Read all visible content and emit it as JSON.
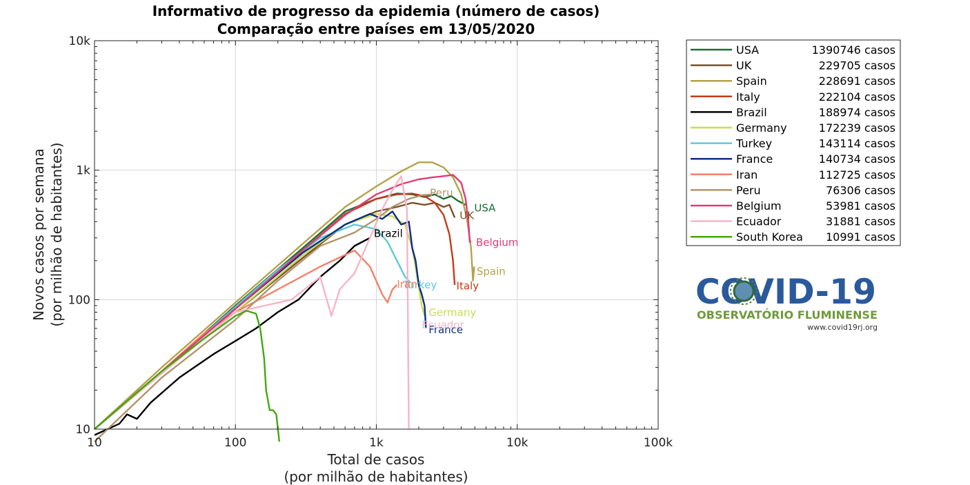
{
  "chart_data": {
    "type": "line",
    "title": "Informativo de progresso da epidemia (número de casos)",
    "subtitle": "Comparação entre países em 13/05/2020",
    "xlabel": "Total de casos",
    "xlabel2": "(por milhão de habitantes)",
    "ylabel": "Novos casos por semana",
    "ylabel2": "(por milhão de habitantes)",
    "x_scale": "log",
    "y_scale": "log",
    "xlim": [
      10,
      100000
    ],
    "ylim": [
      10,
      10000
    ],
    "x_ticks": [
      {
        "value": 10,
        "label": "10"
      },
      {
        "value": 100,
        "label": "100"
      },
      {
        "value": 1000,
        "label": "1k"
      },
      {
        "value": 10000,
        "label": "10k"
      },
      {
        "value": 100000,
        "label": "100k"
      }
    ],
    "y_ticks": [
      {
        "value": 10,
        "label": "10"
      },
      {
        "value": 100,
        "label": "100"
      },
      {
        "value": 1000,
        "label": "1k"
      },
      {
        "value": 10000,
        "label": "10k"
      }
    ],
    "grid": true,
    "legend_position": "outside-right",
    "series": [
      {
        "name": "USA",
        "total": "1390746 casos",
        "color": "#1a6e35",
        "label": "USA",
        "label_at": [
          4950,
          480
        ],
        "points": [
          [
            10,
            10
          ],
          [
            30,
            28
          ],
          [
            100,
            90
          ],
          [
            300,
            250
          ],
          [
            600,
            480
          ],
          [
            1000,
            600
          ],
          [
            1400,
            660
          ],
          [
            1800,
            650
          ],
          [
            2200,
            620
          ],
          [
            2600,
            650
          ],
          [
            3000,
            600
          ],
          [
            3400,
            630
          ],
          [
            3800,
            580
          ],
          [
            4300,
            540
          ]
        ]
      },
      {
        "name": "UK",
        "total": "229705 casos",
        "color": "#7b5026",
        "label": "UK",
        "label_at": [
          3900,
          420
        ],
        "points": [
          [
            10,
            10
          ],
          [
            30,
            27
          ],
          [
            100,
            80
          ],
          [
            300,
            210
          ],
          [
            600,
            380
          ],
          [
            1000,
            480
          ],
          [
            1400,
            520
          ],
          [
            1800,
            560
          ],
          [
            2200,
            540
          ],
          [
            2600,
            560
          ],
          [
            3000,
            520
          ],
          [
            3300,
            540
          ],
          [
            3600,
            430
          ]
        ]
      },
      {
        "name": "Spain",
        "total": "228691 casos",
        "color": "#b5a147",
        "label": "Spain",
        "label_at": [
          5150,
          155
        ],
        "points": [
          [
            10,
            10
          ],
          [
            30,
            30
          ],
          [
            100,
            95
          ],
          [
            300,
            270
          ],
          [
            600,
            520
          ],
          [
            1000,
            750
          ],
          [
            1500,
            980
          ],
          [
            2000,
            1150
          ],
          [
            2500,
            1150
          ],
          [
            3000,
            1050
          ],
          [
            3500,
            880
          ],
          [
            4000,
            650
          ],
          [
            4400,
            420
          ],
          [
            4700,
            250
          ],
          [
            4850,
            140
          ],
          [
            4950,
            180
          ]
        ]
      },
      {
        "name": "Italy",
        "total": "222104 casos",
        "color": "#c43b1b",
        "label": "Italy",
        "label_at": [
          3700,
          120
        ],
        "points": [
          [
            10,
            10
          ],
          [
            30,
            28
          ],
          [
            100,
            85
          ],
          [
            300,
            240
          ],
          [
            600,
            460
          ],
          [
            1000,
            600
          ],
          [
            1400,
            650
          ],
          [
            1800,
            660
          ],
          [
            2200,
            630
          ],
          [
            2600,
            560
          ],
          [
            3000,
            450
          ],
          [
            3300,
            320
          ],
          [
            3500,
            200
          ],
          [
            3600,
            130
          ]
        ]
      },
      {
        "name": "Brazil",
        "total": "188974 casos",
        "color": "#000000",
        "label": "Brazil",
        "label_at": [
          960,
          305
        ],
        "points": [
          [
            10,
            9
          ],
          [
            15,
            11
          ],
          [
            17,
            13
          ],
          [
            20,
            12
          ],
          [
            25,
            16
          ],
          [
            40,
            25
          ],
          [
            70,
            38
          ],
          [
            100,
            48
          ],
          [
            140,
            60
          ],
          [
            200,
            80
          ],
          [
            280,
            100
          ],
          [
            400,
            150
          ],
          [
            550,
            200
          ],
          [
            700,
            260
          ],
          [
            900,
            300
          ]
        ]
      },
      {
        "name": "Germany",
        "total": "172239 casos",
        "color": "#c8dc54",
        "label": "Germany",
        "label_at": [
          2350,
          75
        ],
        "points": [
          [
            10,
            10
          ],
          [
            30,
            27
          ],
          [
            100,
            80
          ],
          [
            300,
            220
          ],
          [
            600,
            380
          ],
          [
            1000,
            460
          ],
          [
            1300,
            440
          ],
          [
            1600,
            380
          ],
          [
            1800,
            250
          ],
          [
            1950,
            150
          ],
          [
            2100,
            90
          ],
          [
            2200,
            75
          ]
        ]
      },
      {
        "name": "Turkey",
        "total": "143114 casos",
        "color": "#5ec8d9",
        "label": "Turkey",
        "label_at": [
          1550,
          122
        ],
        "points": [
          [
            10,
            10
          ],
          [
            30,
            28
          ],
          [
            100,
            88
          ],
          [
            200,
            170
          ],
          [
            400,
            300
          ],
          [
            700,
            380
          ],
          [
            1000,
            350
          ],
          [
            1200,
            280
          ],
          [
            1400,
            200
          ],
          [
            1600,
            150
          ],
          [
            1750,
            135
          ]
        ]
      },
      {
        "name": "France",
        "total": "140734 casos",
        "color": "#0b2d84",
        "label": "France",
        "label_at": [
          2350,
          55
        ],
        "points": [
          [
            10,
            10
          ],
          [
            30,
            28
          ],
          [
            100,
            85
          ],
          [
            300,
            230
          ],
          [
            600,
            380
          ],
          [
            900,
            460
          ],
          [
            1100,
            420
          ],
          [
            1300,
            480
          ],
          [
            1500,
            380
          ],
          [
            1700,
            400
          ],
          [
            1800,
            250
          ],
          [
            1900,
            200
          ],
          [
            2000,
            130
          ],
          [
            2100,
            110
          ],
          [
            2200,
            90
          ],
          [
            2250,
            60
          ]
        ]
      },
      {
        "name": "Iran",
        "total": "112725 casos",
        "color": "#f2806a",
        "label": "Iran",
        "label_at": [
          1400,
          124
        ],
        "points": [
          [
            10,
            10
          ],
          [
            30,
            28
          ],
          [
            60,
            55
          ],
          [
            100,
            80
          ],
          [
            200,
            120
          ],
          [
            400,
            180
          ],
          [
            700,
            240
          ],
          [
            900,
            180
          ],
          [
            1100,
            110
          ],
          [
            1200,
            95
          ],
          [
            1300,
            120
          ],
          [
            1400,
            130
          ]
        ]
      },
      {
        "name": "Peru",
        "total": "76306 casos",
        "color": "#b0946a",
        "label": "Peru",
        "label_at": [
          2400,
          630
        ],
        "points": [
          [
            10,
            8
          ],
          [
            30,
            25
          ],
          [
            100,
            70
          ],
          [
            200,
            140
          ],
          [
            400,
            260
          ],
          [
            700,
            330
          ],
          [
            1000,
            420
          ],
          [
            1300,
            520
          ],
          [
            1700,
            600
          ],
          [
            2100,
            640
          ],
          [
            2500,
            650
          ]
        ]
      },
      {
        "name": "Belgium",
        "total": "53981 casos",
        "color": "#e23a73",
        "label": "Belgium",
        "label_at": [
          5100,
          260
        ],
        "points": [
          [
            10,
            10
          ],
          [
            30,
            28
          ],
          [
            100,
            85
          ],
          [
            300,
            240
          ],
          [
            600,
            450
          ],
          [
            1000,
            650
          ],
          [
            1500,
            780
          ],
          [
            2000,
            850
          ],
          [
            2500,
            880
          ],
          [
            3000,
            900
          ],
          [
            3500,
            920
          ],
          [
            4000,
            800
          ],
          [
            4300,
            600
          ],
          [
            4500,
            400
          ],
          [
            4600,
            280
          ],
          [
            4700,
            280
          ]
        ]
      },
      {
        "name": "Ecuador",
        "total": "31881 casos",
        "color": "#f7b4c6",
        "label": "Ecuador",
        "label_at": [
          2100,
          60
        ],
        "points": [
          [
            10,
            10
          ],
          [
            40,
            35
          ],
          [
            100,
            80
          ],
          [
            250,
            100
          ],
          [
            400,
            150
          ],
          [
            480,
            75
          ],
          [
            550,
            120
          ],
          [
            700,
            160
          ],
          [
            900,
            300
          ],
          [
            1100,
            500
          ],
          [
            1300,
            700
          ],
          [
            1500,
            900
          ],
          [
            1650,
            500
          ],
          [
            1700,
            10
          ]
        ]
      },
      {
        "name": "South Korea",
        "total": "10991 casos",
        "color": "#42a80e",
        "label": "",
        "label_at": [
          110,
          5
        ],
        "points": [
          [
            10,
            10
          ],
          [
            30,
            28
          ],
          [
            60,
            50
          ],
          [
            100,
            75
          ],
          [
            120,
            82
          ],
          [
            140,
            78
          ],
          [
            150,
            60
          ],
          [
            160,
            35
          ],
          [
            165,
            20
          ],
          [
            175,
            14
          ],
          [
            185,
            14
          ],
          [
            195,
            13
          ],
          [
            205,
            8
          ]
        ]
      }
    ]
  },
  "logo": {
    "main": "COVID-19",
    "sub": "OBSERVATÓRIO FLUMINENSE",
    "url": "www.covid19rj.org",
    "main_color": "#2a5a9c",
    "sub_color": "#6f9a3a"
  }
}
